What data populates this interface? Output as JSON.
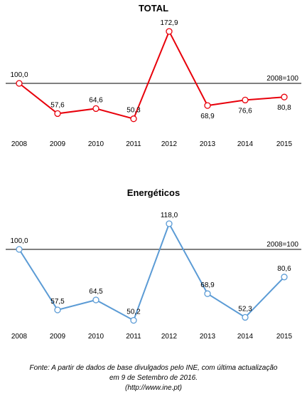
{
  "chart_data": [
    {
      "type": "line",
      "title": "TOTAL",
      "x": [
        "2008",
        "2009",
        "2010",
        "2011",
        "2012",
        "2013",
        "2014",
        "2015"
      ],
      "series": [
        {
          "values": [
            100.0,
            57.6,
            64.6,
            50.3,
            172.9,
            68.9,
            76.6,
            80.8
          ],
          "color": "#e8000b"
        }
      ],
      "data_labels": [
        "100,0",
        "57,6",
        "64,6",
        "50,3",
        "172,9",
        "68,9",
        "76,6",
        "80,8"
      ],
      "reference_line": {
        "value": 100,
        "label": "2008=100"
      },
      "ylim": [
        35,
        185
      ],
      "grid": false,
      "legend": "none"
    },
    {
      "type": "line",
      "title": "Energéticos",
      "x": [
        "2008",
        "2009",
        "2010",
        "2011",
        "2012",
        "2013",
        "2014",
        "2015"
      ],
      "series": [
        {
          "values": [
            100.0,
            57.5,
            64.5,
            50.2,
            118.0,
            68.9,
            52.3,
            80.6
          ],
          "color": "#5b9bd5"
        }
      ],
      "data_labels": [
        "100,0",
        "57,5",
        "64,5",
        "50,2",
        "118,0",
        "68,9",
        "52,3",
        "80,6"
      ],
      "reference_line": {
        "value": 100,
        "label": "2008=100"
      },
      "ylim": [
        46,
        124
      ],
      "grid": false,
      "legend": "none"
    }
  ],
  "footnote": {
    "line1": "Fonte: A partir de dados de base divulgados pelo INE, com última actualização",
    "line2": "em 9 de Setembro de 2016.",
    "line3": "(http://www.ine.pt)"
  }
}
